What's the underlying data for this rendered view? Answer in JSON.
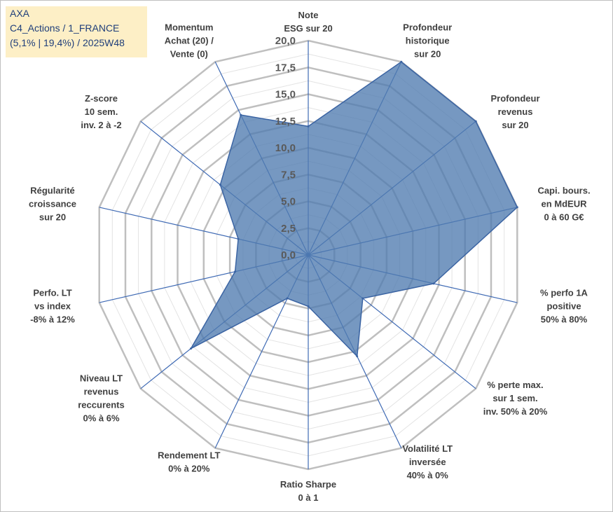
{
  "header": {
    "company": "AXA",
    "category": "C4_Actions / 1_FRANCE",
    "info": "(5,1% | 19,4%) / 2025W48"
  },
  "colors": {
    "fill": "#4f7bb0",
    "stroke": "#3b64a3",
    "grid": "#bfbfbf",
    "spoke": "#3f6ab4",
    "title_bg": "#fdefc6",
    "title_text": "#1f3e7a"
  },
  "chart_data": {
    "type": "radar",
    "title": "AXA",
    "rmin": 0,
    "rmax": 20,
    "rings": [
      0,
      2.5,
      5,
      7.5,
      10,
      12.5,
      15,
      17.5,
      20
    ],
    "tick_labels": [
      "0,0",
      "2,5",
      "5,0",
      "7,5",
      "10,0",
      "12,5",
      "15,0",
      "17,5",
      "20,0"
    ],
    "axes": [
      {
        "label": [
          "Note",
          "ESG sur 20"
        ],
        "value": 12.0
      },
      {
        "label": [
          "Profondeur",
          "historique",
          "sur 20"
        ],
        "value": 20.0
      },
      {
        "label": [
          "Profondeur",
          "revenus",
          "sur 20"
        ],
        "value": 20.0
      },
      {
        "label": [
          "Capi. bours.",
          "en MdEUR",
          "0 à 60 G€"
        ],
        "value": 20.0
      },
      {
        "label": [
          "% perfo 1A",
          "positive",
          "50% à 80%"
        ],
        "value": 12.0
      },
      {
        "label": [
          "% perte max.",
          "sur 1 sem.",
          "inv. 50% à 20%"
        ],
        "value": 6.5
      },
      {
        "label": [
          "Volatilité LT",
          "inversée",
          "40% à 0%"
        ],
        "value": 10.5
      },
      {
        "label": [
          "Ratio Sharpe",
          "0 à 1"
        ],
        "value": 4.8
      },
      {
        "label": [
          "Rendement LT",
          "0% à 20%"
        ],
        "value": 4.5
      },
      {
        "label": [
          "Niveau LT",
          "revenus",
          "reccurents",
          "0% à 6%"
        ],
        "value": 14.0
      },
      {
        "label": [
          "Perfo. LT",
          "vs index",
          "-8% à 12%"
        ],
        "value": 7.0
      },
      {
        "label": [
          "Régularité",
          "croissance",
          "sur 20"
        ],
        "value": 6.7
      },
      {
        "label": [
          "Z-score",
          "10 sem.",
          "inv. 2 à -2"
        ],
        "value": 10.5
      },
      {
        "label": [
          "Momentum",
          "Achat (20) /",
          "Vente (0)"
        ],
        "value": 14.5
      }
    ]
  }
}
